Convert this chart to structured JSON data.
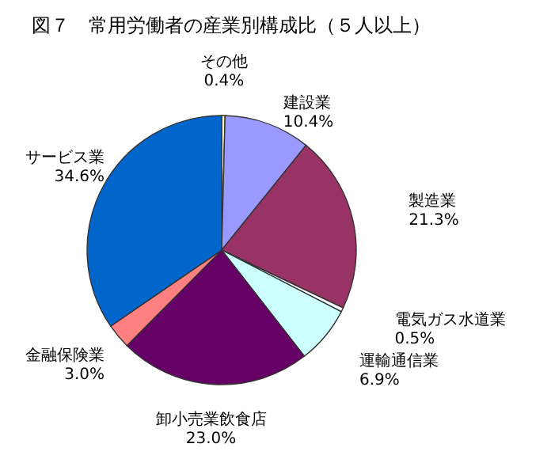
{
  "chart_data": {
    "type": "pie",
    "title": "図７　常用労働者の産業別構成比（５人以上）",
    "categories": [
      "その他",
      "建設業",
      "製造業",
      "電気ガス水道業",
      "運輸通信業",
      "卸小売業飲食店",
      "金融保険業",
      "サービス業"
    ],
    "values": [
      0.4,
      10.4,
      21.3,
      0.5,
      6.9,
      23.0,
      3.0,
      34.6
    ],
    "colors": [
      "#ffffcc",
      "#9999ff",
      "#993366",
      "#ffffff",
      "#ccffff",
      "#660066",
      "#ff8080",
      "#0066cc"
    ],
    "value_labels": [
      "0.4%",
      "10.4%",
      "21.3%",
      "0.5%",
      "6.9%",
      "23.0%",
      "3.0%",
      "34.6%"
    ]
  }
}
